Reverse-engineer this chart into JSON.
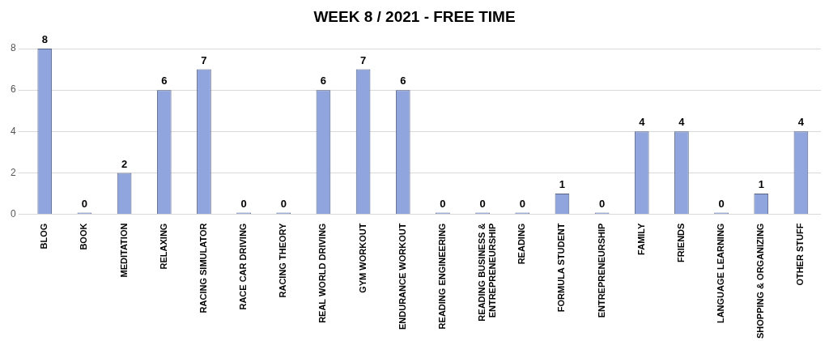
{
  "chart_data": {
    "type": "bar",
    "title": "WEEK 8 / 2021 - FREE TIME",
    "categories": [
      "BLOG",
      "BOOK",
      "MEDITATION",
      "RELAXING",
      "RACING SIMULATOR",
      "RACE CAR DRIVING",
      "RACING THEORY",
      "REAL WORLD DRIVING",
      "GYM WORKOUT",
      "ENDURANCE WORKOUT",
      "READING ENGINEERING",
      "READING BUSINESS & ENTREPRENEURSHIP",
      "READING",
      "FORMULA STUDENT",
      "ENTREPRENEURSHIP",
      "FAMILY",
      "FRIENDS",
      "LANGUAGE LEARNING",
      "SHOPPING & ORGANIZING",
      "OTHER STUFF"
    ],
    "values": [
      8,
      0,
      2,
      6,
      7,
      0,
      0,
      6,
      7,
      6,
      0,
      0,
      0,
      1,
      0,
      4,
      4,
      0,
      1,
      4
    ],
    "color": "#90a5de",
    "ylim": [
      0,
      8
    ],
    "yticks": [
      0,
      2,
      4,
      6,
      8
    ],
    "grid": "y",
    "data_labels": true,
    "legend": false
  }
}
